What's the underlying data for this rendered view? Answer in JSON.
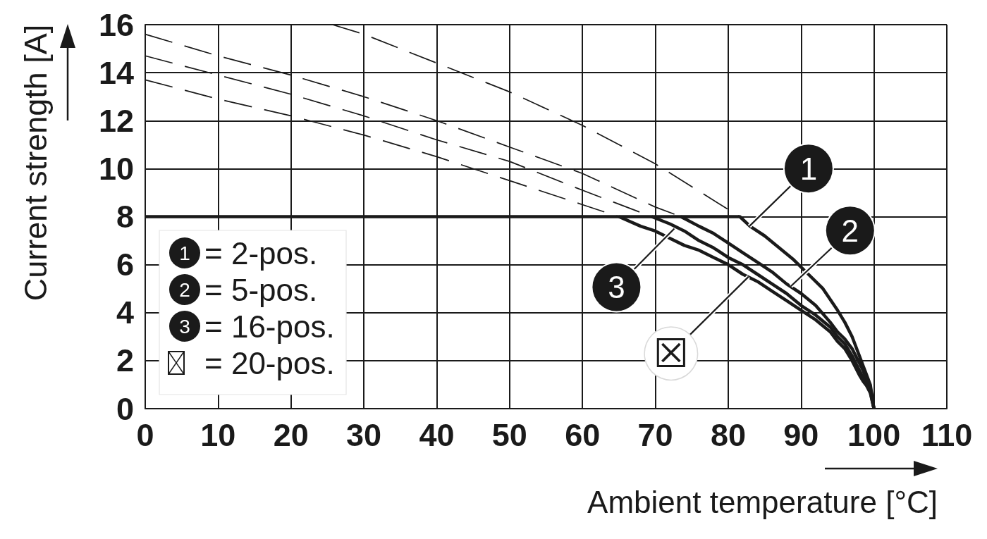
{
  "chart_data": {
    "type": "line",
    "xlabel": "Ambient temperature [°C]",
    "ylabel": "Current strength [A]",
    "xlim": [
      0,
      110
    ],
    "xticks": [
      0,
      10,
      20,
      30,
      40,
      50,
      60,
      70,
      80,
      90,
      100,
      110
    ],
    "ylim": [
      0,
      16
    ],
    "yticks": [
      0,
      2,
      4,
      6,
      8,
      10,
      12,
      14,
      16
    ],
    "grid": true,
    "legend": "bottom left",
    "marker": "none",
    "series": [
      {
        "name": "= 2-pos.",
        "color": "#1a1a1a",
        "line_style": "solid",
        "x": [
          0,
          81.6,
          83,
          85,
          87,
          89,
          91,
          93,
          95,
          96,
          97,
          98,
          98.5,
          99,
          99.5,
          100
        ],
        "values": [
          8,
          8,
          7.6,
          7.2,
          6.7,
          6.2,
          5.6,
          5.0,
          4.1,
          3.6,
          3.0,
          2.2,
          1.8,
          1.4,
          1.0,
          0
        ]
      },
      {
        "name": "= 5-pos.",
        "color": "#1a1a1a",
        "line_style": "solid",
        "x": [
          73.5,
          76,
          78,
          80,
          82,
          84,
          86,
          88,
          90,
          92,
          94,
          95,
          96,
          97,
          98,
          98.5,
          99,
          99.5,
          100
        ],
        "values": [
          8,
          7.6,
          7.3,
          6.9,
          6.5,
          6.1,
          5.7,
          5.2,
          4.8,
          4.3,
          3.6,
          3.2,
          2.9,
          2.5,
          1.9,
          1.6,
          1.2,
          0.9,
          0
        ]
      },
      {
        "name": "= 16-pos.",
        "color": "#1a1a1a",
        "line_style": "solid",
        "x": [
          69.5,
          72,
          74,
          76,
          78,
          80,
          82,
          84,
          86,
          88,
          90,
          92,
          94,
          95,
          96,
          97,
          98,
          98.5,
          99,
          99.5,
          100
        ],
        "values": [
          8,
          7.7,
          7.4,
          7.0,
          6.7,
          6.3,
          6.0,
          5.6,
          5.2,
          4.8,
          4.3,
          3.9,
          3.4,
          3.0,
          2.7,
          2.2,
          1.6,
          1.3,
          1.0,
          0.7,
          0
        ]
      },
      {
        "name": "= 20-pos.",
        "color": "#1a1a1a",
        "line_style": "solid",
        "x": [
          65,
          68,
          70,
          72,
          74,
          76,
          78,
          80,
          82,
          84,
          86,
          88,
          90,
          92,
          94,
          95,
          96,
          97,
          98,
          98.5,
          99,
          99.5,
          100
        ],
        "values": [
          8,
          7.6,
          7.4,
          7.1,
          6.8,
          6.6,
          6.3,
          6.0,
          5.6,
          5.3,
          4.9,
          4.5,
          4.1,
          3.7,
          3.2,
          2.8,
          2.5,
          2.0,
          1.4,
          1.15,
          0.95,
          0.65,
          0
        ]
      },
      {
        "color": "#1a1a1a",
        "line_style": "dashed",
        "x": [
          25.7,
          30,
          40,
          50,
          60,
          70,
          80,
          81.6
        ],
        "values": [
          16,
          15.6,
          14.4,
          13.2,
          11.8,
          10.2,
          8.3,
          8
        ]
      },
      {
        "color": "#1a1a1a",
        "line_style": "dashed",
        "x": [
          0,
          10,
          20,
          30,
          40,
          50,
          60,
          70,
          73.5
        ],
        "values": [
          15.6,
          14.7,
          13.9,
          13.0,
          12.0,
          10.9,
          9.8,
          8.4,
          8
        ]
      },
      {
        "color": "#1a1a1a",
        "line_style": "dashed",
        "x": [
          0,
          10,
          20,
          30,
          40,
          50,
          60,
          69.5
        ],
        "values": [
          14.7,
          13.9,
          13.1,
          12.2,
          11.2,
          10.3,
          9.1,
          8
        ]
      },
      {
        "color": "#1a1a1a",
        "line_style": "dashed",
        "x": [
          0,
          10,
          20,
          30,
          40,
          50,
          60,
          65
        ],
        "values": [
          13.7,
          12.9,
          12.2,
          11.4,
          10.5,
          9.5,
          8.5,
          8
        ]
      }
    ],
    "annotations": [
      {
        "text": "1",
        "x": 82.9,
        "y": 7.6
      },
      {
        "text": "2",
        "x": 88.6,
        "y": 5.1
      },
      {
        "text": "3",
        "x": 72.6,
        "y": 7.5
      },
      {
        "text": "☒",
        "x": 82.8,
        "y": 5.5
      }
    ]
  }
}
